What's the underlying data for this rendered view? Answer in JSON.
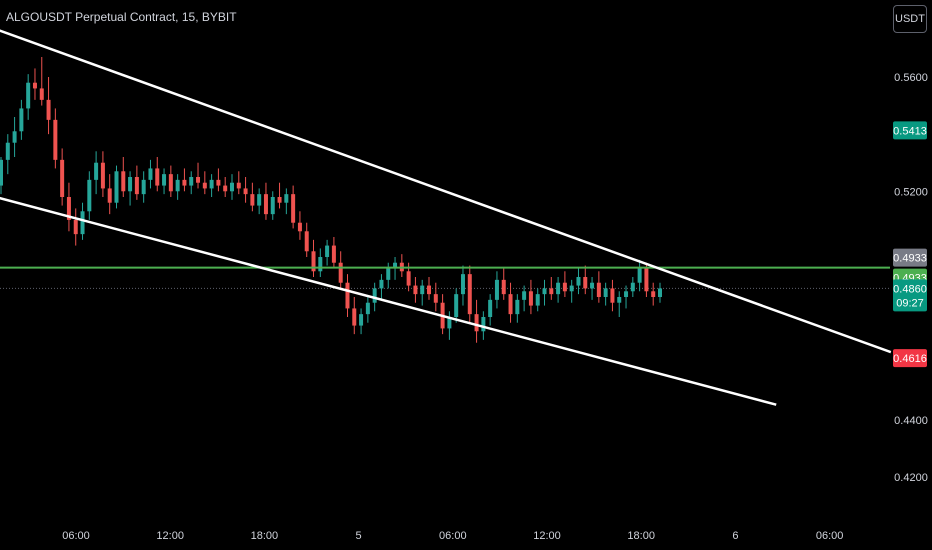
{
  "header": {
    "title": "ALGOUSDT Perpetual Contract, 15, BYBIT",
    "currency_label": "USDT"
  },
  "colors": {
    "background": "#000000",
    "up": "#26a69a",
    "down": "#ef5350",
    "trendline": "#ffffff",
    "horizontal_level": "#4caf50",
    "target_zone": "#0b3b33",
    "stop_zone": "#4c1518",
    "axis_text": "#d1d4dc"
  },
  "chart_data": {
    "type": "candlestick",
    "symbol": "ALGOUSDT",
    "timeframe": "15",
    "exchange": "BYBIT",
    "x_ticks": [
      "06:00",
      "12:00",
      "18:00",
      "5",
      "06:00",
      "12:00",
      "18:00",
      "6",
      "06:00"
    ],
    "y_ticks": [
      "0.5600",
      "0.5200",
      "0.4400",
      "0.4200"
    ],
    "y_axis": {
      "min": 0.41,
      "max": 0.575,
      "tick_values": [
        0.56,
        0.52,
        0.44,
        0.42
      ]
    },
    "price_labels": [
      {
        "text": "0.5413",
        "value": 0.5413,
        "role": "target",
        "bg": "#089981",
        "fg": "#ffffff"
      },
      {
        "text": "0.4933",
        "value": 0.4933,
        "role": "entry",
        "bg": "#787b86",
        "fg": "#ffffff",
        "offset": -1
      },
      {
        "text": "0.4933",
        "value": 0.4933,
        "role": "horizontal-level",
        "bg": "#4caf50",
        "fg": "#ffffff",
        "offset": 1
      },
      {
        "text": "0.4860",
        "value": 0.486,
        "role": "last-price",
        "bg": "#089981",
        "fg": "#ffffff",
        "subtext": "09:27"
      },
      {
        "text": "0.4616",
        "value": 0.4616,
        "role": "stop",
        "bg": "#f23645",
        "fg": "#ffffff"
      }
    ],
    "horizontal_level": 0.4933,
    "last_price": 0.486,
    "trendlines": [
      {
        "name": "upper-channel-line",
        "x_hours": [
          -6.5,
          51.9
        ],
        "y": [
          0.5795,
          0.4637
        ]
      },
      {
        "name": "lower-channel-line",
        "x_hours": [
          -6.5,
          44.6
        ],
        "y": [
          0.52,
          0.4453
        ]
      }
    ],
    "position": {
      "side": "long",
      "entry": 0.4933,
      "target": 0.5413,
      "stop": 0.4616,
      "x_hours_start": 58.4,
      "x_hours_end": 64.5
    },
    "candles": [
      {
        "o": 0.522,
        "h": 0.532,
        "l": 0.519,
        "c": 0.531
      },
      {
        "o": 0.531,
        "h": 0.54,
        "l": 0.526,
        "c": 0.537
      },
      {
        "o": 0.537,
        "h": 0.546,
        "l": 0.532,
        "c": 0.541
      },
      {
        "o": 0.541,
        "h": 0.552,
        "l": 0.538,
        "c": 0.549
      },
      {
        "o": 0.549,
        "h": 0.561,
        "l": 0.545,
        "c": 0.558
      },
      {
        "o": 0.558,
        "h": 0.563,
        "l": 0.552,
        "c": 0.556
      },
      {
        "o": 0.556,
        "h": 0.567,
        "l": 0.55,
        "c": 0.552
      },
      {
        "o": 0.552,
        "h": 0.56,
        "l": 0.54,
        "c": 0.545
      },
      {
        "o": 0.545,
        "h": 0.549,
        "l": 0.528,
        "c": 0.531
      },
      {
        "o": 0.531,
        "h": 0.535,
        "l": 0.515,
        "c": 0.518
      },
      {
        "o": 0.518,
        "h": 0.523,
        "l": 0.506,
        "c": 0.51
      },
      {
        "o": 0.51,
        "h": 0.514,
        "l": 0.501,
        "c": 0.505
      },
      {
        "o": 0.505,
        "h": 0.516,
        "l": 0.503,
        "c": 0.513
      },
      {
        "o": 0.513,
        "h": 0.527,
        "l": 0.51,
        "c": 0.524
      },
      {
        "o": 0.524,
        "h": 0.534,
        "l": 0.519,
        "c": 0.53
      },
      {
        "o": 0.53,
        "h": 0.534,
        "l": 0.518,
        "c": 0.521
      },
      {
        "o": 0.521,
        "h": 0.526,
        "l": 0.512,
        "c": 0.516
      },
      {
        "o": 0.516,
        "h": 0.529,
        "l": 0.514,
        "c": 0.527
      },
      {
        "o": 0.527,
        "h": 0.532,
        "l": 0.518,
        "c": 0.52
      },
      {
        "o": 0.52,
        "h": 0.527,
        "l": 0.515,
        "c": 0.525
      },
      {
        "o": 0.525,
        "h": 0.529,
        "l": 0.517,
        "c": 0.519
      },
      {
        "o": 0.519,
        "h": 0.527,
        "l": 0.516,
        "c": 0.524
      },
      {
        "o": 0.524,
        "h": 0.531,
        "l": 0.521,
        "c": 0.528
      },
      {
        "o": 0.528,
        "h": 0.532,
        "l": 0.52,
        "c": 0.522
      },
      {
        "o": 0.522,
        "h": 0.528,
        "l": 0.519,
        "c": 0.526
      },
      {
        "o": 0.526,
        "h": 0.529,
        "l": 0.518,
        "c": 0.52
      },
      {
        "o": 0.52,
        "h": 0.526,
        "l": 0.517,
        "c": 0.524
      },
      {
        "o": 0.524,
        "h": 0.528,
        "l": 0.52,
        "c": 0.522
      },
      {
        "o": 0.522,
        "h": 0.527,
        "l": 0.519,
        "c": 0.525
      },
      {
        "o": 0.525,
        "h": 0.53,
        "l": 0.521,
        "c": 0.523
      },
      {
        "o": 0.523,
        "h": 0.527,
        "l": 0.519,
        "c": 0.521
      },
      {
        "o": 0.521,
        "h": 0.526,
        "l": 0.518,
        "c": 0.524
      },
      {
        "o": 0.524,
        "h": 0.528,
        "l": 0.52,
        "c": 0.522
      },
      {
        "o": 0.522,
        "h": 0.525,
        "l": 0.518,
        "c": 0.52
      },
      {
        "o": 0.52,
        "h": 0.526,
        "l": 0.517,
        "c": 0.523
      },
      {
        "o": 0.523,
        "h": 0.527,
        "l": 0.519,
        "c": 0.521
      },
      {
        "o": 0.521,
        "h": 0.525,
        "l": 0.516,
        "c": 0.519
      },
      {
        "o": 0.519,
        "h": 0.523,
        "l": 0.513,
        "c": 0.515
      },
      {
        "o": 0.515,
        "h": 0.521,
        "l": 0.512,
        "c": 0.519
      },
      {
        "o": 0.519,
        "h": 0.523,
        "l": 0.51,
        "c": 0.512
      },
      {
        "o": 0.512,
        "h": 0.52,
        "l": 0.51,
        "c": 0.518
      },
      {
        "o": 0.518,
        "h": 0.523,
        "l": 0.514,
        "c": 0.516
      },
      {
        "o": 0.516,
        "h": 0.521,
        "l": 0.512,
        "c": 0.519
      },
      {
        "o": 0.519,
        "h": 0.522,
        "l": 0.507,
        "c": 0.509
      },
      {
        "o": 0.509,
        "h": 0.513,
        "l": 0.503,
        "c": 0.506
      },
      {
        "o": 0.506,
        "h": 0.509,
        "l": 0.497,
        "c": 0.499
      },
      {
        "o": 0.499,
        "h": 0.503,
        "l": 0.49,
        "c": 0.492
      },
      {
        "o": 0.492,
        "h": 0.5,
        "l": 0.49,
        "c": 0.497
      },
      {
        "o": 0.497,
        "h": 0.503,
        "l": 0.494,
        "c": 0.501
      },
      {
        "o": 0.501,
        "h": 0.504,
        "l": 0.493,
        "c": 0.495
      },
      {
        "o": 0.495,
        "h": 0.499,
        "l": 0.486,
        "c": 0.488
      },
      {
        "o": 0.488,
        "h": 0.491,
        "l": 0.476,
        "c": 0.479
      },
      {
        "o": 0.479,
        "h": 0.483,
        "l": 0.47,
        "c": 0.473
      },
      {
        "o": 0.473,
        "h": 0.479,
        "l": 0.47,
        "c": 0.477
      },
      {
        "o": 0.477,
        "h": 0.483,
        "l": 0.474,
        "c": 0.481
      },
      {
        "o": 0.481,
        "h": 0.488,
        "l": 0.478,
        "c": 0.486
      },
      {
        "o": 0.486,
        "h": 0.491,
        "l": 0.482,
        "c": 0.489
      },
      {
        "o": 0.489,
        "h": 0.495,
        "l": 0.486,
        "c": 0.493
      },
      {
        "o": 0.493,
        "h": 0.497,
        "l": 0.489,
        "c": 0.495
      },
      {
        "o": 0.495,
        "h": 0.498,
        "l": 0.49,
        "c": 0.492
      },
      {
        "o": 0.492,
        "h": 0.495,
        "l": 0.485,
        "c": 0.487
      },
      {
        "o": 0.487,
        "h": 0.49,
        "l": 0.481,
        "c": 0.484
      },
      {
        "o": 0.484,
        "h": 0.489,
        "l": 0.48,
        "c": 0.487
      },
      {
        "o": 0.487,
        "h": 0.49,
        "l": 0.482,
        "c": 0.484
      },
      {
        "o": 0.484,
        "h": 0.488,
        "l": 0.478,
        "c": 0.481
      },
      {
        "o": 0.481,
        "h": 0.484,
        "l": 0.47,
        "c": 0.472
      },
      {
        "o": 0.472,
        "h": 0.478,
        "l": 0.468,
        "c": 0.476
      },
      {
        "o": 0.476,
        "h": 0.486,
        "l": 0.474,
        "c": 0.484
      },
      {
        "o": 0.484,
        "h": 0.494,
        "l": 0.48,
        "c": 0.491
      },
      {
        "o": 0.491,
        "h": 0.494,
        "l": 0.474,
        "c": 0.477
      },
      {
        "o": 0.477,
        "h": 0.482,
        "l": 0.467,
        "c": 0.471
      },
      {
        "o": 0.471,
        "h": 0.478,
        "l": 0.468,
        "c": 0.476
      },
      {
        "o": 0.476,
        "h": 0.484,
        "l": 0.473,
        "c": 0.482
      },
      {
        "o": 0.482,
        "h": 0.492,
        "l": 0.479,
        "c": 0.489
      },
      {
        "o": 0.489,
        "h": 0.493,
        "l": 0.482,
        "c": 0.484
      },
      {
        "o": 0.484,
        "h": 0.488,
        "l": 0.474,
        "c": 0.477
      },
      {
        "o": 0.477,
        "h": 0.484,
        "l": 0.474,
        "c": 0.482
      },
      {
        "o": 0.482,
        "h": 0.487,
        "l": 0.478,
        "c": 0.485
      },
      {
        "o": 0.485,
        "h": 0.489,
        "l": 0.477,
        "c": 0.48
      },
      {
        "o": 0.48,
        "h": 0.486,
        "l": 0.478,
        "c": 0.484
      },
      {
        "o": 0.484,
        "h": 0.489,
        "l": 0.48,
        "c": 0.486
      },
      {
        "o": 0.486,
        "h": 0.49,
        "l": 0.482,
        "c": 0.484
      },
      {
        "o": 0.484,
        "h": 0.49,
        "l": 0.481,
        "c": 0.488
      },
      {
        "o": 0.488,
        "h": 0.492,
        "l": 0.483,
        "c": 0.485
      },
      {
        "o": 0.485,
        "h": 0.489,
        "l": 0.481,
        "c": 0.487
      },
      {
        "o": 0.487,
        "h": 0.493,
        "l": 0.484,
        "c": 0.49
      },
      {
        "o": 0.49,
        "h": 0.494,
        "l": 0.484,
        "c": 0.486
      },
      {
        "o": 0.486,
        "h": 0.49,
        "l": 0.482,
        "c": 0.488
      },
      {
        "o": 0.488,
        "h": 0.492,
        "l": 0.481,
        "c": 0.483
      },
      {
        "o": 0.483,
        "h": 0.488,
        "l": 0.48,
        "c": 0.486
      },
      {
        "o": 0.486,
        "h": 0.489,
        "l": 0.478,
        "c": 0.481
      },
      {
        "o": 0.481,
        "h": 0.485,
        "l": 0.476,
        "c": 0.483
      },
      {
        "o": 0.483,
        "h": 0.487,
        "l": 0.479,
        "c": 0.485
      },
      {
        "o": 0.485,
        "h": 0.49,
        "l": 0.483,
        "c": 0.488
      },
      {
        "o": 0.488,
        "h": 0.496,
        "l": 0.485,
        "c": 0.493
      },
      {
        "o": 0.493,
        "h": 0.495,
        "l": 0.483,
        "c": 0.485
      },
      {
        "o": 0.485,
        "h": 0.488,
        "l": 0.48,
        "c": 0.483
      },
      {
        "o": 0.483,
        "h": 0.488,
        "l": 0.481,
        "c": 0.486
      }
    ]
  }
}
